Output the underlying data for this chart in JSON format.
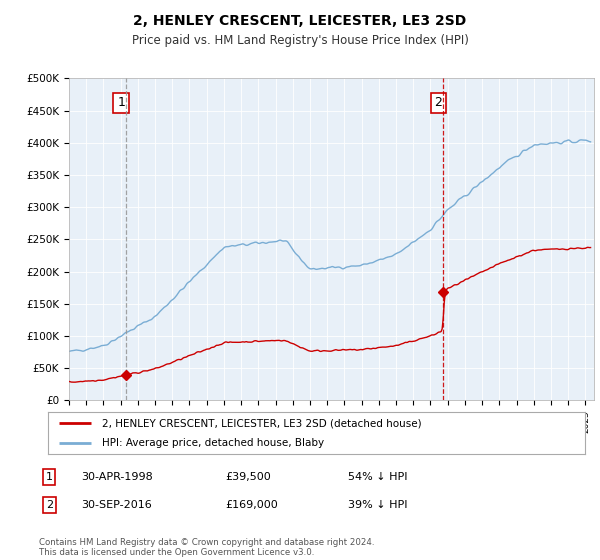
{
  "title": "2, HENLEY CRESCENT, LEICESTER, LE3 2SD",
  "subtitle": "Price paid vs. HM Land Registry's House Price Index (HPI)",
  "ylabel_ticks": [
    "£0",
    "£50K",
    "£100K",
    "£150K",
    "£200K",
    "£250K",
    "£300K",
    "£350K",
    "£400K",
    "£450K",
    "£500K"
  ],
  "ylim": [
    0,
    500000
  ],
  "xlim_start": 1995.0,
  "xlim_end": 2025.5,
  "sale1_date": 1998.33,
  "sale1_price": 39500,
  "sale2_date": 2016.75,
  "sale2_price": 169000,
  "sale1_label": "1",
  "sale2_label": "2",
  "legend_line1": "2, HENLEY CRESCENT, LEICESTER, LE3 2SD (detached house)",
  "legend_line2": "HPI: Average price, detached house, Blaby",
  "line_color_red": "#cc0000",
  "line_color_blue": "#7aadd4",
  "vline1_color": "#aaaaaa",
  "vline2_color": "#cc0000",
  "background_color": "#ffffff",
  "chart_bg_color": "#e8f0f8",
  "grid_color": "#ffffff",
  "footer": "Contains HM Land Registry data © Crown copyright and database right 2024.\nThis data is licensed under the Open Government Licence v3.0."
}
